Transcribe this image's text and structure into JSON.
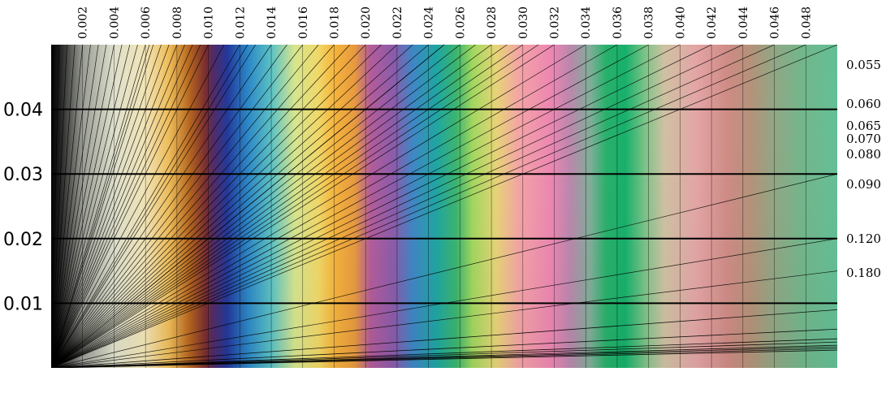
{
  "chart_data": {
    "type": "line",
    "title": "",
    "xlabel": "",
    "ylabel": "",
    "xlim": [
      0,
      0.05
    ],
    "ylim": [
      0,
      0.05
    ],
    "grid": "horizontal lines at left-axis ticks; vertical lines at top-axis ticks",
    "top_axis": {
      "ticks": [
        0.002,
        0.004,
        0.006,
        0.008,
        0.01,
        0.012,
        0.014,
        0.016,
        0.018,
        0.02,
        0.022,
        0.024,
        0.026,
        0.028,
        0.03,
        0.032,
        0.034,
        0.036,
        0.038,
        0.04,
        0.042,
        0.044,
        0.046,
        0.048
      ],
      "tick_labels": [
        "0.002",
        "0.004",
        "0.006",
        "0.008",
        "0.010",
        "0.012",
        "0.014",
        "0.016",
        "0.018",
        "0.020",
        "0.022",
        "0.024",
        "0.026",
        "0.028",
        "0.030",
        "0.032",
        "0.034",
        "0.036",
        "0.038",
        "0.040",
        "0.042",
        "0.044",
        "0.046",
        "0.048"
      ]
    },
    "left_axis": {
      "ticks": [
        0.01,
        0.02,
        0.03,
        0.04
      ],
      "tick_labels": [
        "0.01",
        "0.02",
        "0.03",
        "0.04"
      ]
    },
    "ratio_lines": {
      "labeled": [
        {
          "label": "0.055",
          "slope": 0.055
        },
        {
          "label": "0.060",
          "slope": 0.06
        },
        {
          "label": "0.065",
          "slope": 0.065
        },
        {
          "label": "0.070",
          "slope": 0.07
        },
        {
          "label": "0.080",
          "slope": 0.08
        },
        {
          "label": "0.090",
          "slope": 0.09
        },
        {
          "label": "0.120",
          "slope": 0.12
        },
        {
          "label": "0.180",
          "slope": 0.18
        }
      ],
      "unlabeled_endpoints_on_top_edge_x": [
        0.0005,
        0.001,
        0.0015,
        0.002,
        0.0025,
        0.003,
        0.0035,
        0.004,
        0.0045,
        0.005,
        0.0055,
        0.006,
        0.0065,
        0.007,
        0.0075,
        0.008,
        0.0085,
        0.009,
        0.0095,
        0.01,
        0.011,
        0.012,
        0.013,
        0.014,
        0.015,
        0.016,
        0.017,
        0.018,
        0.019,
        0.02,
        0.021,
        0.022,
        0.023,
        0.024,
        0.025,
        0.026,
        0.027,
        0.028,
        0.029,
        0.03,
        0.031,
        0.032,
        0.034,
        0.036,
        0.038,
        0.04,
        0.042,
        0.044,
        0.046,
        0.048
      ],
      "steep_unlabeled_slopes": [
        0.3,
        0.4,
        0.6,
        1.0,
        2.0,
        4.0,
        8.0
      ]
    },
    "background_colors": {
      "stops": [
        {
          "x": 0.0,
          "color": "#000000"
        },
        {
          "x": 0.0005,
          "color": "#1b1b1b"
        },
        {
          "x": 0.002,
          "color": "#9a9d95"
        },
        {
          "x": 0.004,
          "color": "#dfe0cc"
        },
        {
          "x": 0.006,
          "color": "#f2e4b5"
        },
        {
          "x": 0.0075,
          "color": "#eebc58"
        },
        {
          "x": 0.0088,
          "color": "#b5651e"
        },
        {
          "x": 0.0098,
          "color": "#7a2e2e"
        },
        {
          "x": 0.0103,
          "color": "#522a66"
        },
        {
          "x": 0.0112,
          "color": "#22389a"
        },
        {
          "x": 0.0125,
          "color": "#2b86c6"
        },
        {
          "x": 0.014,
          "color": "#5bc2c4"
        },
        {
          "x": 0.0155,
          "color": "#d7e58e"
        },
        {
          "x": 0.017,
          "color": "#f0d868"
        },
        {
          "x": 0.018,
          "color": "#f6b43c"
        },
        {
          "x": 0.0193,
          "color": "#e79a3e"
        },
        {
          "x": 0.0203,
          "color": "#b35c9a"
        },
        {
          "x": 0.0218,
          "color": "#8a5bab"
        },
        {
          "x": 0.023,
          "color": "#3e86c5"
        },
        {
          "x": 0.0245,
          "color": "#1fa5a2"
        },
        {
          "x": 0.0258,
          "color": "#3cb56d"
        },
        {
          "x": 0.0268,
          "color": "#a1d75f"
        },
        {
          "x": 0.0283,
          "color": "#e7d476"
        },
        {
          "x": 0.0298,
          "color": "#f4a3a6"
        },
        {
          "x": 0.0318,
          "color": "#ec86b2"
        },
        {
          "x": 0.033,
          "color": "#bb87ad"
        },
        {
          "x": 0.0343,
          "color": "#7fae98"
        },
        {
          "x": 0.0353,
          "color": "#27b06a"
        },
        {
          "x": 0.0365,
          "color": "#15b06a"
        },
        {
          "x": 0.0378,
          "color": "#7ec388"
        },
        {
          "x": 0.039,
          "color": "#cfc1a2"
        },
        {
          "x": 0.041,
          "color": "#e4a5a6"
        },
        {
          "x": 0.043,
          "color": "#cf8b85"
        },
        {
          "x": 0.0445,
          "color": "#b49279"
        },
        {
          "x": 0.046,
          "color": "#90a784"
        },
        {
          "x": 0.0478,
          "color": "#72b68b"
        },
        {
          "x": 0.05,
          "color": "#63bf96"
        }
      ]
    }
  }
}
